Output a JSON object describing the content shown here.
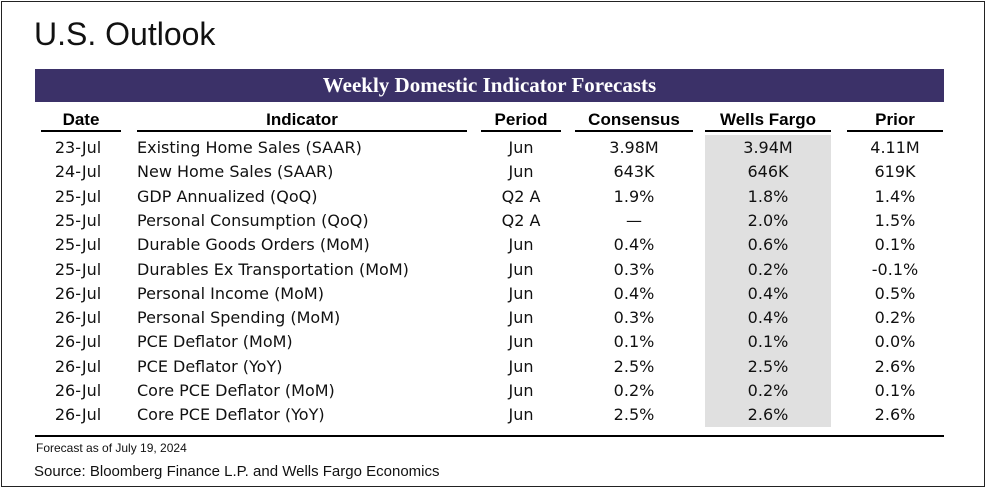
{
  "page_title": "U.S. Outlook",
  "table_title": "Weekly Domestic Indicator Forecasts",
  "columns": {
    "date": "Date",
    "indicator": "Indicator",
    "period": "Period",
    "consensus": "Consensus",
    "wells_fargo": "Wells Fargo",
    "prior": "Prior"
  },
  "rows": [
    {
      "date": "23-Jul",
      "indicator": "Existing Home Sales (SAAR)",
      "period": "Jun",
      "consensus": "3.98M",
      "wells_fargo": "3.94M",
      "prior": "4.11M"
    },
    {
      "date": "24-Jul",
      "indicator": "New Home Sales (SAAR)",
      "period": "Jun",
      "consensus": "643K",
      "wells_fargo": "646K",
      "prior": "619K"
    },
    {
      "date": "25-Jul",
      "indicator": "GDP Annualized (QoQ)",
      "period": "Q2 A",
      "consensus": "1.9%",
      "wells_fargo": "1.8%",
      "prior": "1.4%"
    },
    {
      "date": "25-Jul",
      "indicator": "Personal Consumption (QoQ)",
      "period": "Q2 A",
      "consensus": "—",
      "wells_fargo": "2.0%",
      "prior": "1.5%"
    },
    {
      "date": "25-Jul",
      "indicator": "Durable Goods Orders (MoM)",
      "period": "Jun",
      "consensus": "0.4%",
      "wells_fargo": "0.6%",
      "prior": "0.1%"
    },
    {
      "date": "25-Jul",
      "indicator": "Durables Ex Transportation (MoM)",
      "period": "Jun",
      "consensus": "0.3%",
      "wells_fargo": "0.2%",
      "prior": "-0.1%"
    },
    {
      "date": "26-Jul",
      "indicator": "Personal Income (MoM)",
      "period": "Jun",
      "consensus": "0.4%",
      "wells_fargo": "0.4%",
      "prior": "0.5%"
    },
    {
      "date": "26-Jul",
      "indicator": "Personal Spending (MoM)",
      "period": "Jun",
      "consensus": "0.3%",
      "wells_fargo": "0.4%",
      "prior": "0.2%"
    },
    {
      "date": "26-Jul",
      "indicator": "PCE Deflator (MoM)",
      "period": "Jun",
      "consensus": "0.1%",
      "wells_fargo": "0.1%",
      "prior": "0.0%"
    },
    {
      "date": "26-Jul",
      "indicator": "PCE Deflator (YoY)",
      "period": "Jun",
      "consensus": "2.5%",
      "wells_fargo": "2.5%",
      "prior": "2.6%"
    },
    {
      "date": "26-Jul",
      "indicator": "Core PCE Deflator (MoM)",
      "period": "Jun",
      "consensus": "0.2%",
      "wells_fargo": "0.2%",
      "prior": "0.1%"
    },
    {
      "date": "26-Jul",
      "indicator": "Core PCE Deflator (YoY)",
      "period": "Jun",
      "consensus": "2.5%",
      "wells_fargo": "2.6%",
      "prior": "2.6%"
    }
  ],
  "note": "Forecast as of July 19, 2024",
  "source": "Source: Bloomberg Finance L.P. and Wells Fargo Economics",
  "colors": {
    "banner": "#3b3168",
    "wells_fargo_column_shade": "#e0e0e0"
  }
}
